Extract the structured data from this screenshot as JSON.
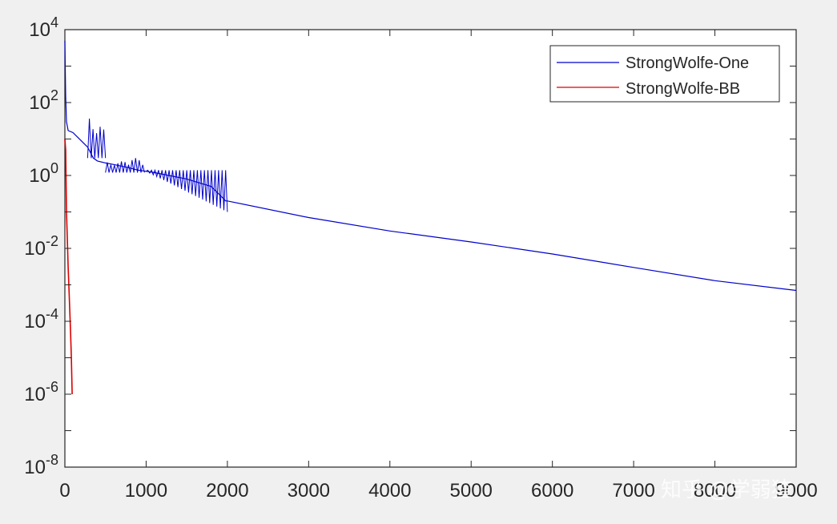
{
  "chart_data": {
    "type": "line",
    "title": "",
    "xlabel": "",
    "ylabel": "",
    "xlim": [
      0,
      9000
    ],
    "ylim": [
      1e-08,
      10000
    ],
    "yscale": "log",
    "grid": false,
    "legend_placement": "top-right",
    "x_ticks": [
      "0",
      "1000",
      "2000",
      "3000",
      "4000",
      "5000",
      "6000",
      "7000",
      "8000",
      "9000"
    ],
    "y_ticks": [
      {
        "mantissa": "10",
        "exponent": "4"
      },
      {
        "mantissa": "10",
        "exponent": "2"
      },
      {
        "mantissa": "10",
        "exponent": "0"
      },
      {
        "mantissa": "10",
        "exponent": "-2"
      },
      {
        "mantissa": "10",
        "exponent": "-4"
      },
      {
        "mantissa": "10",
        "exponent": "-6"
      },
      {
        "mantissa": "10",
        "exponent": "-8"
      }
    ],
    "series": [
      {
        "name": "StrongWolfe-One",
        "color": "#0000cc",
        "points": [
          [
            0,
            5000
          ],
          [
            5,
            800
          ],
          [
            10,
            150
          ],
          [
            20,
            30
          ],
          [
            40,
            17
          ],
          [
            100,
            15
          ],
          [
            200,
            9
          ],
          [
            280,
            6
          ],
          [
            350,
            3
          ],
          [
            400,
            2.5
          ],
          [
            500,
            2.2
          ],
          [
            600,
            2
          ],
          [
            700,
            1.8
          ],
          [
            800,
            1.6
          ],
          [
            900,
            1.4
          ],
          [
            1000,
            1.3
          ],
          [
            1100,
            1.2
          ],
          [
            1500,
            0.8
          ],
          [
            1800,
            0.5
          ],
          [
            1980,
            0.2
          ],
          [
            2000,
            0.2
          ],
          [
            3000,
            0.07
          ],
          [
            4000,
            0.03
          ],
          [
            5000,
            0.015
          ],
          [
            6000,
            0.007
          ],
          [
            7000,
            0.003
          ],
          [
            8000,
            0.0013
          ],
          [
            9000,
            0.0007
          ]
        ],
        "bands": [
          {
            "x0": 280,
            "x1": 500,
            "low": 3,
            "high": 40
          },
          {
            "x0": 500,
            "x1": 980,
            "low": 1.2,
            "high": 3
          },
          {
            "x0": 1000,
            "x1": 2000,
            "low_start": 1.3,
            "low_end": 0.1,
            "high": 1.4
          }
        ]
      },
      {
        "name": "StrongWolfe-BB",
        "color": "#dd0000",
        "points": [
          [
            0,
            10
          ],
          [
            10,
            5
          ],
          [
            20,
            0.1
          ],
          [
            30,
            0.02
          ],
          [
            40,
            0.003
          ],
          [
            50,
            0.0008
          ],
          [
            60,
            0.0002
          ],
          [
            70,
            5e-05
          ],
          [
            80,
            1e-05
          ],
          [
            90,
            1e-06
          ]
        ]
      }
    ]
  },
  "watermark": "知乎 @学弱猹"
}
